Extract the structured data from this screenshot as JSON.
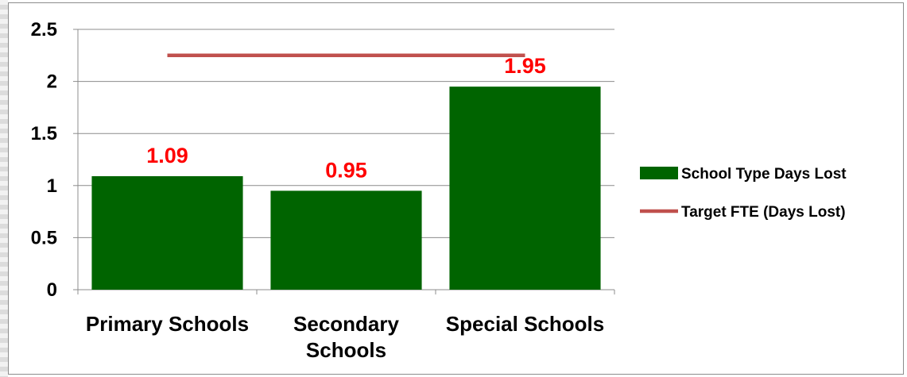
{
  "chart_data": {
    "type": "bar",
    "categories": [
      "Primary Schools",
      "Secondary Schools",
      "Special Schools"
    ],
    "series": [
      {
        "name": "School Type Days Lost",
        "kind": "bar",
        "values": [
          1.09,
          0.95,
          1.95
        ],
        "color": "#006400"
      },
      {
        "name": "Target FTE (Days Lost)",
        "kind": "line",
        "values": [
          2.25,
          2.25,
          2.25
        ],
        "color": "#c0504d"
      }
    ],
    "data_labels": [
      "1.09",
      "0.95",
      "1.95"
    ],
    "data_label_color": "#ff0000",
    "title": "",
    "xlabel": "",
    "ylabel": "",
    "ylim": [
      0,
      2.5
    ],
    "yticks": [
      0,
      0.5,
      1,
      1.5,
      2,
      2.5
    ],
    "ytick_labels": [
      "0",
      "0.5",
      "1",
      "1.5",
      "2",
      "2.5"
    ],
    "grid": true,
    "legend_position": "right"
  }
}
